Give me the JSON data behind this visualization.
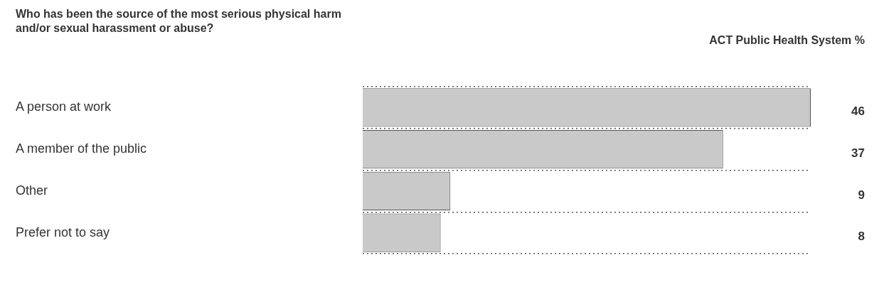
{
  "chart_data": {
    "type": "bar",
    "orientation": "horizontal",
    "title": "Who has been the source of the most serious physical harm\nand/or sexual harassment or abuse?",
    "annotations": [
      "ACT Public Health System %"
    ],
    "categories": [
      "A person at work",
      "A member of the public",
      "Other",
      "Prefer not to say"
    ],
    "values": [
      46,
      37,
      9,
      8
    ],
    "color": "#c9c9c9",
    "data_labels": true,
    "grid": "y",
    "legend": false
  }
}
